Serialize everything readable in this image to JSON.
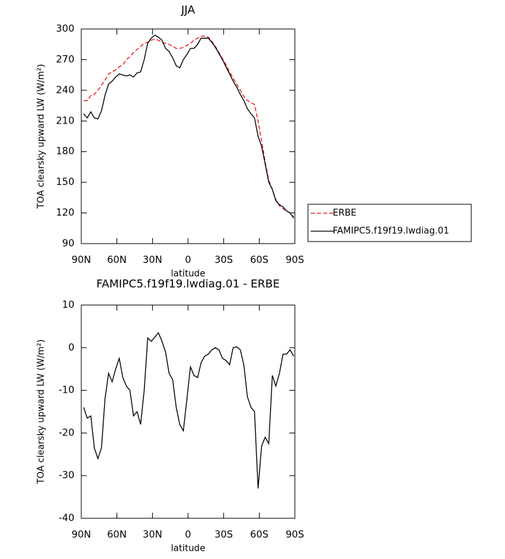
{
  "chart_data": [
    {
      "type": "line",
      "title": "JJA",
      "xlabel": "latitude",
      "ylabel": "TOA clearsky upward LW (W/m²)",
      "x": [
        88,
        85,
        82,
        79,
        76,
        73,
        70,
        67,
        64,
        61,
        58,
        55,
        52,
        49,
        46,
        43,
        40,
        37,
        34,
        31,
        28,
        25,
        22,
        19,
        16,
        13,
        10,
        7,
        4,
        1,
        -2,
        -5,
        -8,
        -11,
        -14,
        -17,
        -20,
        -23,
        -26,
        -29,
        -32,
        -35,
        -38,
        -41,
        -44,
        -47,
        -50,
        -53,
        -56,
        -59,
        -62,
        -65,
        -68,
        -71,
        -74,
        -77,
        -80,
        -83,
        -86,
        -89
      ],
      "series": [
        {
          "name": "ERBE",
          "color": "#e8141a",
          "dash": true,
          "values": [
            230,
            230,
            235,
            236,
            240,
            245,
            250,
            256,
            258,
            260,
            263,
            265,
            270,
            273,
            277,
            280,
            283,
            286,
            287,
            289,
            290,
            289,
            287,
            286,
            285,
            283,
            281,
            281,
            282,
            284,
            286,
            289,
            291,
            293,
            293,
            292,
            288,
            283,
            277,
            271,
            265,
            258,
            252,
            246,
            240,
            234,
            230,
            228,
            226,
            210,
            190,
            170,
            152,
            143,
            133,
            127,
            124,
            122,
            120,
            116
          ]
        },
        {
          "name": "FAMIPC5.f19f19.lwdiag.01",
          "color": "#000000",
          "dash": false,
          "values": [
            217,
            213,
            219,
            213,
            212,
            220,
            235,
            246,
            249,
            253,
            256,
            255,
            254,
            255,
            253,
            257,
            258,
            270,
            286,
            291,
            294,
            292,
            289,
            281,
            278,
            272,
            264,
            262,
            270,
            275,
            281,
            281,
            285,
            291,
            291,
            291,
            287,
            282,
            276,
            270,
            263,
            256,
            249,
            243,
            236,
            230,
            222,
            217,
            213,
            195,
            185,
            168,
            150,
            143,
            132,
            128,
            126,
            122,
            120,
            115
          ]
        }
      ],
      "xlim": [
        90,
        -90
      ],
      "xticks": [
        {
          "value": 90,
          "label": "90N"
        },
        {
          "value": 60,
          "label": "60N"
        },
        {
          "value": 30,
          "label": "30N"
        },
        0,
        {
          "value": -30,
          "label": "30S"
        },
        {
          "value": -60,
          "label": "60S"
        },
        {
          "value": -90,
          "label": "90S"
        }
      ],
      "ylim": [
        90,
        300
      ],
      "yticks": [
        90,
        120,
        150,
        180,
        210,
        240,
        270,
        300
      ],
      "legend": "outside right"
    },
    {
      "type": "line",
      "title": "FAMIPC5.f19f19.lwdiag.01 - ERBE",
      "xlabel": "latitude",
      "ylabel": "TOA clearsky upward LW (W/m²)",
      "x": [
        88,
        85,
        82,
        79,
        76,
        73,
        70,
        67,
        64,
        61,
        58,
        55,
        52,
        49,
        46,
        43,
        40,
        37,
        34,
        31,
        28,
        25,
        22,
        19,
        16,
        13,
        10,
        7,
        4,
        1,
        -2,
        -5,
        -8,
        -11,
        -14,
        -17,
        -20,
        -23,
        -26,
        -29,
        -32,
        -35,
        -38,
        -41,
        -44,
        -47,
        -50,
        -53,
        -56,
        -59,
        -62,
        -65,
        -68,
        -71,
        -74,
        -77,
        -80,
        -83,
        -86,
        -89
      ],
      "series": [
        {
          "color": "#000000",
          "dash": false,
          "values": [
            -14,
            -16.5,
            -16,
            -23.5,
            -26,
            -23.5,
            -12,
            -6,
            -8,
            -5,
            -2.5,
            -7,
            -9,
            -10,
            -16,
            -15,
            -18,
            -10,
            2.3,
            1.5,
            2.5,
            3.5,
            1.5,
            -1,
            -6,
            -7.5,
            -14,
            -18,
            -19.5,
            -12,
            -4.5,
            -6.5,
            -7,
            -3.5,
            -2,
            -1.5,
            -0.5,
            0,
            -0.5,
            -2.5,
            -3,
            -4,
            0,
            0.2,
            -0.5,
            -4,
            -11.5,
            -14,
            -15,
            -33,
            -23,
            -21,
            -22.5,
            -6.5,
            -9,
            -6,
            -1.5,
            -1.5,
            -0.5,
            -2
          ]
        }
      ],
      "xlim": [
        90,
        -90
      ],
      "xticks": [
        {
          "value": 90,
          "label": "90N"
        },
        {
          "value": 60,
          "label": "60N"
        },
        {
          "value": 30,
          "label": "30N"
        },
        0,
        {
          "value": -30,
          "label": "30S"
        },
        {
          "value": -60,
          "label": "60S"
        },
        {
          "value": -90,
          "label": "90S"
        }
      ],
      "ylim": [
        -40,
        10
      ],
      "yticks": [
        -40,
        -30,
        -20,
        -10,
        0,
        10
      ]
    }
  ]
}
